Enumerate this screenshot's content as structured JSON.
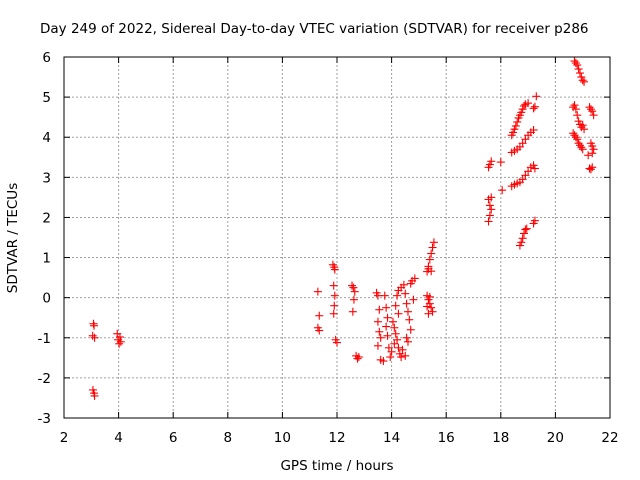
{
  "chart_data": {
    "type": "scatter",
    "title": "Day 249 of 2022, Sidereal Day-to-day VTEC variation (SDTVAR) for receiver p286",
    "xlabel": "GPS time / hours",
    "ylabel": "SDTVAR / TECUs",
    "xlim": [
      2,
      22
    ],
    "ylim": [
      -3,
      6
    ],
    "xticks": [
      "2",
      "4",
      "6",
      "8",
      "10",
      "12",
      "14",
      "16",
      "18",
      "20",
      "22"
    ],
    "yticks": [
      "-3",
      "-2",
      "-1",
      "0",
      "1",
      "2",
      "3",
      "4",
      "5",
      "6"
    ],
    "grid": true,
    "marker": "+",
    "color": "#ff0000",
    "points": [
      [
        3.08,
        -0.65
      ],
      [
        3.1,
        -0.7
      ],
      [
        3.05,
        -0.95
      ],
      [
        3.12,
        -1.0
      ],
      [
        3.06,
        -2.3
      ],
      [
        3.1,
        -2.38
      ],
      [
        3.12,
        -2.45
      ],
      [
        3.95,
        -0.9
      ],
      [
        4.05,
        -0.98
      ],
      [
        3.98,
        -1.05
      ],
      [
        4.08,
        -1.1
      ],
      [
        4.02,
        -1.15
      ],
      [
        11.3,
        0.15
      ],
      [
        11.35,
        -0.45
      ],
      [
        11.3,
        -0.75
      ],
      [
        11.35,
        -0.82
      ],
      [
        11.85,
        0.82
      ],
      [
        11.9,
        0.76
      ],
      [
        11.92,
        0.7
      ],
      [
        11.88,
        0.3
      ],
      [
        11.92,
        0.05
      ],
      [
        11.9,
        -0.2
      ],
      [
        11.88,
        -0.4
      ],
      [
        11.95,
        -1.05
      ],
      [
        12.0,
        -1.12
      ],
      [
        12.55,
        0.3
      ],
      [
        12.6,
        0.25
      ],
      [
        12.65,
        0.15
      ],
      [
        12.62,
        -0.05
      ],
      [
        12.58,
        -0.35
      ],
      [
        12.7,
        -1.45
      ],
      [
        12.75,
        -1.52
      ],
      [
        12.8,
        -1.48
      ],
      [
        13.45,
        0.12
      ],
      [
        13.5,
        0.05
      ],
      [
        13.55,
        -0.3
      ],
      [
        13.5,
        -0.6
      ],
      [
        13.55,
        -0.85
      ],
      [
        13.6,
        -1.0
      ],
      [
        13.5,
        -1.2
      ],
      [
        13.6,
        -1.55
      ],
      [
        13.7,
        -1.58
      ],
      [
        13.75,
        0.05
      ],
      [
        13.8,
        -0.25
      ],
      [
        13.85,
        -0.5
      ],
      [
        13.8,
        -0.72
      ],
      [
        13.85,
        -0.95
      ],
      [
        13.9,
        -1.25
      ],
      [
        13.95,
        -1.48
      ],
      [
        14.0,
        -1.35
      ],
      [
        14.05,
        -0.6
      ],
      [
        14.1,
        -0.75
      ],
      [
        14.15,
        -0.9
      ],
      [
        14.2,
        -1.05
      ],
      [
        14.1,
        -1.15
      ],
      [
        14.25,
        -1.25
      ],
      [
        14.3,
        -1.4
      ],
      [
        14.35,
        -1.48
      ],
      [
        14.4,
        -1.3
      ],
      [
        14.2,
        0.05
      ],
      [
        14.25,
        0.18
      ],
      [
        14.35,
        0.25
      ],
      [
        14.45,
        0.32
      ],
      [
        14.5,
        0.1
      ],
      [
        14.55,
        -0.15
      ],
      [
        14.6,
        -0.35
      ],
      [
        14.65,
        -0.55
      ],
      [
        14.7,
        -0.8
      ],
      [
        14.7,
        0.35
      ],
      [
        14.75,
        0.42
      ],
      [
        14.85,
        0.48
      ],
      [
        14.8,
        -0.05
      ],
      [
        14.6,
        -1.1
      ],
      [
        14.5,
        -1.45
      ],
      [
        14.55,
        -1.0
      ],
      [
        14.25,
        -0.4
      ],
      [
        14.15,
        -0.2
      ],
      [
        15.3,
        0.65
      ],
      [
        15.35,
        0.78
      ],
      [
        15.4,
        0.95
      ],
      [
        15.45,
        1.1
      ],
      [
        15.5,
        1.25
      ],
      [
        15.55,
        1.38
      ],
      [
        15.35,
        0.72
      ],
      [
        15.45,
        0.66
      ],
      [
        15.3,
        0.05
      ],
      [
        15.35,
        -0.05
      ],
      [
        15.4,
        -0.15
      ],
      [
        15.45,
        -0.25
      ],
      [
        15.5,
        -0.35
      ],
      [
        15.35,
        -0.4
      ],
      [
        15.3,
        -0.22
      ],
      [
        15.4,
        0.02
      ],
      [
        17.55,
        1.9
      ],
      [
        17.6,
        2.05
      ],
      [
        17.65,
        2.2
      ],
      [
        17.6,
        2.3
      ],
      [
        17.55,
        2.45
      ],
      [
        17.65,
        2.5
      ],
      [
        17.55,
        3.25
      ],
      [
        17.6,
        3.32
      ],
      [
        17.65,
        3.4
      ],
      [
        18.0,
        3.38
      ],
      [
        18.05,
        2.68
      ],
      [
        18.4,
        2.78
      ],
      [
        18.5,
        2.82
      ],
      [
        18.6,
        2.85
      ],
      [
        18.7,
        2.88
      ],
      [
        18.8,
        2.95
      ],
      [
        18.9,
        3.05
      ],
      [
        19.0,
        3.15
      ],
      [
        19.1,
        3.25
      ],
      [
        19.2,
        3.3
      ],
      [
        19.25,
        3.22
      ],
      [
        18.7,
        1.3
      ],
      [
        18.75,
        1.38
      ],
      [
        18.8,
        1.48
      ],
      [
        18.85,
        1.6
      ],
      [
        18.9,
        1.7
      ],
      [
        18.95,
        1.72
      ],
      [
        19.2,
        1.85
      ],
      [
        19.25,
        1.92
      ],
      [
        18.4,
        3.62
      ],
      [
        18.5,
        3.66
      ],
      [
        18.6,
        3.7
      ],
      [
        18.7,
        3.76
      ],
      [
        18.8,
        3.85
      ],
      [
        18.9,
        3.95
      ],
      [
        19.0,
        4.05
      ],
      [
        19.1,
        4.12
      ],
      [
        19.2,
        4.18
      ],
      [
        18.4,
        4.05
      ],
      [
        18.45,
        4.12
      ],
      [
        18.5,
        4.2
      ],
      [
        18.55,
        4.28
      ],
      [
        18.6,
        4.38
      ],
      [
        18.65,
        4.48
      ],
      [
        18.7,
        4.55
      ],
      [
        18.75,
        4.62
      ],
      [
        18.8,
        4.7
      ],
      [
        18.85,
        4.78
      ],
      [
        18.9,
        4.82
      ],
      [
        19.0,
        4.85
      ],
      [
        19.2,
        4.72
      ],
      [
        19.25,
        4.76
      ],
      [
        19.3,
        5.02
      ],
      [
        20.7,
        5.9
      ],
      [
        20.75,
        5.85
      ],
      [
        20.8,
        5.8
      ],
      [
        20.85,
        5.7
      ],
      [
        20.9,
        5.6
      ],
      [
        20.95,
        5.5
      ],
      [
        21.0,
        5.42
      ],
      [
        21.05,
        5.38
      ],
      [
        20.65,
        4.75
      ],
      [
        20.7,
        4.8
      ],
      [
        20.75,
        4.7
      ],
      [
        20.8,
        4.55
      ],
      [
        20.85,
        4.4
      ],
      [
        20.9,
        4.32
      ],
      [
        20.95,
        4.25
      ],
      [
        21.0,
        4.3
      ],
      [
        21.05,
        4.2
      ],
      [
        20.65,
        4.1
      ],
      [
        20.7,
        4.05
      ],
      [
        20.75,
        4.0
      ],
      [
        20.8,
        3.95
      ],
      [
        20.85,
        3.85
      ],
      [
        20.9,
        3.8
      ],
      [
        20.95,
        3.75
      ],
      [
        21.0,
        3.7
      ],
      [
        21.25,
        4.75
      ],
      [
        21.3,
        4.7
      ],
      [
        21.35,
        4.65
      ],
      [
        21.4,
        4.55
      ],
      [
        21.3,
        3.85
      ],
      [
        21.35,
        3.78
      ],
      [
        21.4,
        3.7
      ],
      [
        21.35,
        3.6
      ],
      [
        21.2,
        3.55
      ],
      [
        21.25,
        3.22
      ],
      [
        21.3,
        3.2
      ],
      [
        21.35,
        3.25
      ]
    ]
  }
}
